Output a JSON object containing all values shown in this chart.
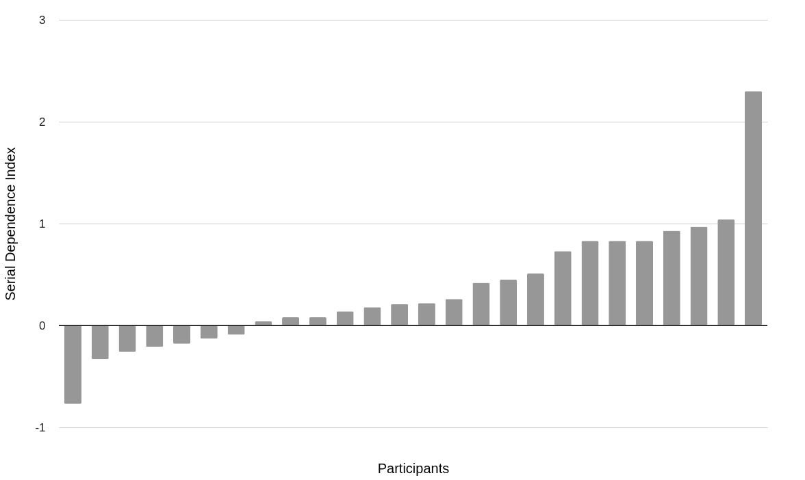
{
  "chart_data": {
    "type": "bar",
    "xlabel": "Participants",
    "ylabel": "Serial Dependence Index",
    "categories": [
      null,
      null,
      null,
      null,
      null,
      null,
      null,
      null,
      null,
      null,
      null,
      null,
      null,
      null,
      null,
      null,
      null,
      null,
      null,
      null,
      null,
      null,
      null,
      null,
      null,
      null
    ],
    "values": [
      -0.77,
      -0.33,
      -0.26,
      -0.21,
      -0.18,
      -0.13,
      -0.09,
      0.04,
      0.08,
      0.08,
      0.14,
      0.18,
      0.21,
      0.22,
      0.26,
      0.42,
      0.45,
      0.51,
      0.73,
      0.83,
      0.83,
      0.83,
      0.93,
      0.97,
      1.04,
      2.3
    ],
    "color": "#979797",
    "ylim": [
      -1,
      3
    ],
    "yticks": [
      -1,
      0,
      1,
      2,
      3
    ],
    "grid": "y",
    "tick_labels": "y"
  }
}
